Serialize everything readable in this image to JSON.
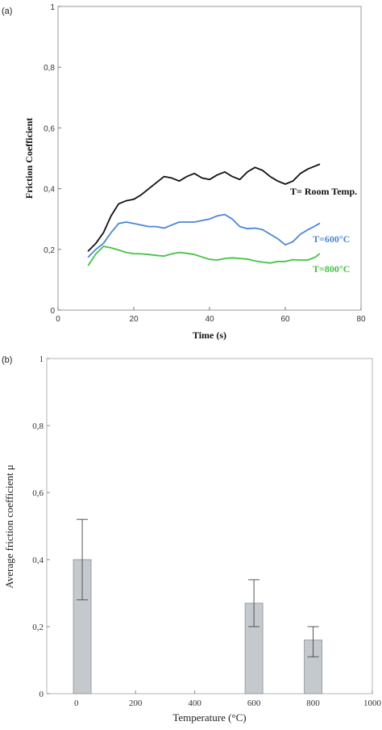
{
  "chart_data": [
    {
      "panel_label": "(a)",
      "type": "line",
      "xlabel": "Time (s)",
      "ylabel": "Friction Coefficient",
      "xlim": [
        0,
        80
      ],
      "ylim": [
        0,
        1
      ],
      "x_ticks": [
        "0",
        "20",
        "40",
        "60",
        "80"
      ],
      "y_ticks": [
        "0",
        "0,2",
        "0,4",
        "0,6",
        "0,8",
        "1"
      ],
      "series": [
        {
          "name": "T= Room Temp.",
          "color": "#111111",
          "x": [
            8,
            10,
            12,
            14,
            16,
            18,
            20,
            22,
            24,
            26,
            28,
            30,
            32,
            34,
            36,
            38,
            40,
            42,
            44,
            46,
            48,
            50,
            52,
            54,
            56,
            58,
            60,
            62,
            64,
            66,
            68,
            69
          ],
          "y": [
            0.195,
            0.22,
            0.255,
            0.31,
            0.35,
            0.36,
            0.365,
            0.38,
            0.4,
            0.42,
            0.44,
            0.435,
            0.425,
            0.44,
            0.45,
            0.435,
            0.43,
            0.445,
            0.455,
            0.44,
            0.43,
            0.455,
            0.47,
            0.46,
            0.44,
            0.425,
            0.415,
            0.425,
            0.45,
            0.465,
            0.475,
            0.48
          ]
        },
        {
          "name": "T=600°C",
          "color": "#4a86d8",
          "x": [
            8,
            10,
            12,
            14,
            16,
            18,
            20,
            22,
            24,
            26,
            28,
            30,
            32,
            34,
            36,
            38,
            40,
            42,
            44,
            46,
            48,
            50,
            52,
            54,
            56,
            58,
            60,
            62,
            64,
            66,
            68,
            69
          ],
          "y": [
            0.175,
            0.2,
            0.22,
            0.255,
            0.285,
            0.29,
            0.285,
            0.28,
            0.275,
            0.275,
            0.27,
            0.28,
            0.29,
            0.29,
            0.29,
            0.295,
            0.3,
            0.31,
            0.315,
            0.3,
            0.275,
            0.268,
            0.27,
            0.265,
            0.25,
            0.235,
            0.215,
            0.225,
            0.25,
            0.265,
            0.278,
            0.285
          ]
        },
        {
          "name": "T=800°C",
          "color": "#44c244",
          "x": [
            8,
            10,
            12,
            14,
            16,
            18,
            20,
            22,
            24,
            26,
            28,
            30,
            32,
            34,
            36,
            38,
            40,
            42,
            44,
            46,
            48,
            50,
            52,
            54,
            56,
            58,
            60,
            62,
            64,
            66,
            68,
            69
          ],
          "y": [
            0.148,
            0.185,
            0.21,
            0.205,
            0.198,
            0.19,
            0.186,
            0.185,
            0.183,
            0.18,
            0.178,
            0.185,
            0.19,
            0.187,
            0.183,
            0.175,
            0.167,
            0.165,
            0.17,
            0.172,
            0.17,
            0.168,
            0.162,
            0.158,
            0.155,
            0.16,
            0.16,
            0.166,
            0.165,
            0.165,
            0.175,
            0.185
          ]
        }
      ]
    },
    {
      "panel_label": "(b)",
      "type": "bar",
      "xlabel": "Temperature (°C)",
      "ylabel": "Average friction coefficient μ",
      "xlim": [
        -100,
        1000
      ],
      "ylim": [
        0,
        1
      ],
      "x_ticks": [
        "0",
        "200",
        "400",
        "600",
        "800",
        "1000"
      ],
      "y_ticks": [
        "0",
        "0,2",
        "0,4",
        "0,6",
        "0,8",
        "1"
      ],
      "bar_color": "#c4c9cd",
      "bars": [
        {
          "x": 20,
          "value": 0.4,
          "err_low": 0.28,
          "err_high": 0.52
        },
        {
          "x": 600,
          "value": 0.27,
          "err_low": 0.2,
          "err_high": 0.34
        },
        {
          "x": 800,
          "value": 0.16,
          "err_low": 0.11,
          "err_high": 0.2
        }
      ]
    }
  ]
}
